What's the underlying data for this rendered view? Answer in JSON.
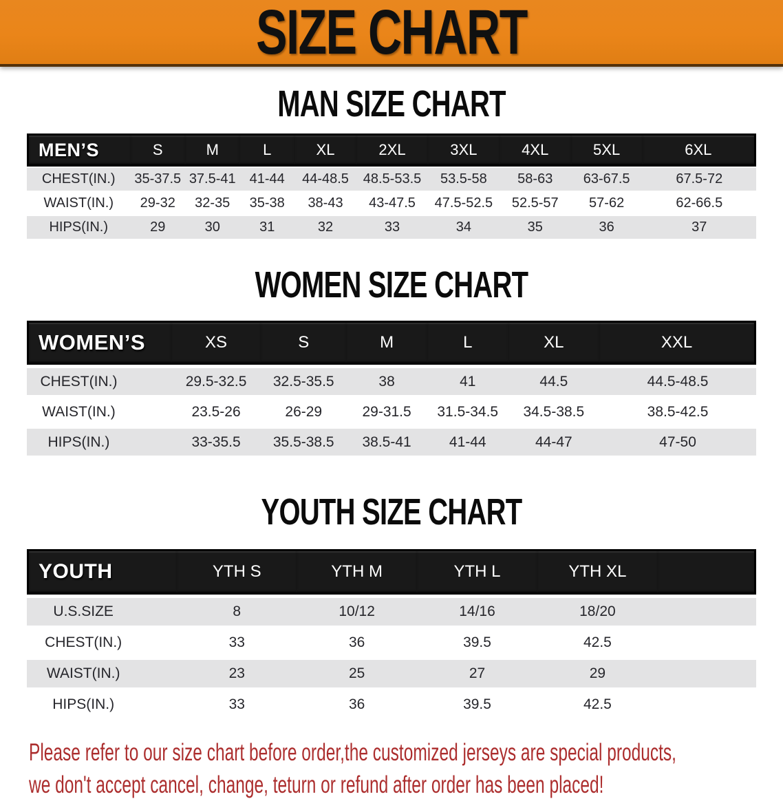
{
  "banner": {
    "title": "SIZE CHART"
  },
  "sections": [
    {
      "heading": "MAN SIZE CHART",
      "table": {
        "label": "MEN’S",
        "columns": [
          "S",
          "M",
          "L",
          "XL",
          "2XL",
          "3XL",
          "4XL",
          "5XL",
          "6XL"
        ],
        "rows": [
          {
            "label": "CHEST(IN.)",
            "values": [
              "35-37.5",
              "37.5-41",
              "41-44",
              "44-48.5",
              "48.5-53.5",
              "53.5-58",
              "58-63",
              "63-67.5",
              "67.5-72"
            ]
          },
          {
            "label": "WAIST(IN.)",
            "values": [
              "29-32",
              "32-35",
              "35-38",
              "38-43",
              "43-47.5",
              "47.5-52.5",
              "52.5-57",
              "57-62",
              "62-66.5"
            ]
          },
          {
            "label": "HIPS(IN.)",
            "values": [
              "29",
              "30",
              "31",
              "32",
              "33",
              "34",
              "35",
              "36",
              "37"
            ]
          }
        ]
      }
    },
    {
      "heading": "WOMEN SIZE CHART",
      "table": {
        "label": "WOMEN’S",
        "columns": [
          "XS",
          "S",
          "M",
          "L",
          "XL",
          "XXL"
        ],
        "rows": [
          {
            "label": "CHEST(IN.)",
            "values": [
              "29.5-32.5",
              "32.5-35.5",
              "38",
              "41",
              "44.5",
              "44.5-48.5"
            ]
          },
          {
            "label": "WAIST(IN.)",
            "values": [
              "23.5-26",
              "26-29",
              "29-31.5",
              "31.5-34.5",
              "34.5-38.5",
              "38.5-42.5"
            ]
          },
          {
            "label": "HIPS(IN.)",
            "values": [
              "33-35.5",
              "35.5-38.5",
              "38.5-41",
              "41-44",
              "44-47",
              "47-50"
            ]
          }
        ]
      }
    },
    {
      "heading": "YOUTH SIZE CHART",
      "table": {
        "label": "YOUTH",
        "columns": [
          "YTH S",
          "YTH M",
          "YTH L",
          "YTH XL"
        ],
        "rows": [
          {
            "label": "U.S.SIZE",
            "values": [
              "8",
              "10/12",
              "14/16",
              "18/20"
            ]
          },
          {
            "label": "CHEST(IN.)",
            "values": [
              "33",
              "36",
              "39.5",
              "42.5"
            ]
          },
          {
            "label": "WAIST(IN.)",
            "values": [
              "23",
              "25",
              "27",
              "29"
            ]
          },
          {
            "label": "HIPS(IN.)",
            "values": [
              "33",
              "36",
              "39.5",
              "42.5"
            ]
          }
        ]
      }
    }
  ],
  "disclaimer": {
    "line1": "Please refer to our size chart before order,the customized jerseys are special products,",
    "line2": "we don't accept cancel, change, teturn or refund after order has been placed!"
  },
  "colors": {
    "banner_bg": "#E8851C",
    "header_bar": "#191919",
    "row_alt": "#E3E3E4",
    "heading_text": "#0B0B0B",
    "disclaimer_text": "#AC2E2E"
  }
}
